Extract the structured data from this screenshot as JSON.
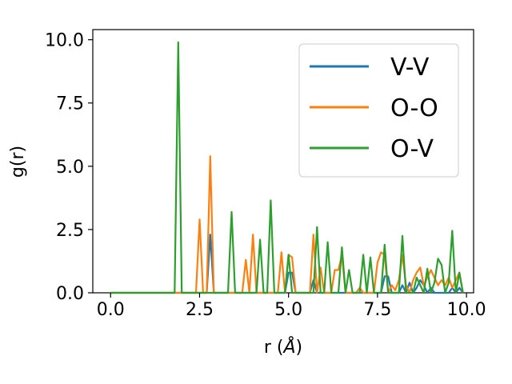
{
  "chart_data": {
    "type": "line",
    "title": "",
    "xlabel_text": "r (",
    "xlabel_unit": "Å",
    "xlabel_close": ")",
    "ylabel": "g(r)",
    "xlim": [
      -0.5,
      10.2
    ],
    "ylim": [
      0,
      10.4
    ],
    "xticks": [
      0.0,
      2.5,
      5.0,
      7.5,
      10.0
    ],
    "xtick_labels": [
      "0.0",
      "2.5",
      "5.0",
      "7.5",
      "10.0"
    ],
    "yticks": [
      0.0,
      2.5,
      5.0,
      7.5,
      10.0
    ],
    "ytick_labels": [
      "0.0",
      "2.5",
      "5.0",
      "7.5",
      "10.0"
    ],
    "grid": false,
    "legend_position": "top-right",
    "series": [
      {
        "name": "V-V",
        "color": "#1f77b4",
        "points": [
          [
            0,
            0
          ],
          [
            2.7,
            0
          ],
          [
            2.8,
            2.3
          ],
          [
            2.9,
            0
          ],
          [
            4.9,
            0
          ],
          [
            5.0,
            0.8
          ],
          [
            5.1,
            0.8
          ],
          [
            5.2,
            0
          ],
          [
            5.6,
            0
          ],
          [
            5.7,
            0.5
          ],
          [
            5.8,
            0
          ],
          [
            7.6,
            0
          ],
          [
            7.7,
            0.65
          ],
          [
            7.8,
            0.65
          ],
          [
            7.9,
            0
          ],
          [
            8.1,
            0
          ],
          [
            8.2,
            0.3
          ],
          [
            8.3,
            0
          ],
          [
            8.4,
            0.4
          ],
          [
            8.5,
            0
          ],
          [
            8.6,
            0.2
          ],
          [
            8.7,
            0.5
          ],
          [
            8.8,
            0.3
          ],
          [
            8.9,
            0
          ],
          [
            9.0,
            0.2
          ],
          [
            9.1,
            0
          ],
          [
            9.5,
            0
          ],
          [
            9.6,
            0.2
          ],
          [
            9.7,
            0
          ],
          [
            9.8,
            0.2
          ],
          [
            9.9,
            0
          ]
        ]
      },
      {
        "name": "O-O",
        "color": "#ff7f0e",
        "points": [
          [
            0,
            0
          ],
          [
            2.4,
            0
          ],
          [
            2.5,
            2.9
          ],
          [
            2.6,
            0
          ],
          [
            2.7,
            0
          ],
          [
            2.8,
            5.4
          ],
          [
            2.9,
            0
          ],
          [
            3.7,
            0
          ],
          [
            3.8,
            1.3
          ],
          [
            3.9,
            0
          ],
          [
            4.0,
            2.3
          ],
          [
            4.1,
            0
          ],
          [
            4.7,
            0
          ],
          [
            4.8,
            1.6
          ],
          [
            4.9,
            0
          ],
          [
            5.0,
            1.5
          ],
          [
            5.1,
            1.4
          ],
          [
            5.2,
            0
          ],
          [
            5.6,
            0
          ],
          [
            5.7,
            2.3
          ],
          [
            5.8,
            0
          ],
          [
            5.9,
            1.0
          ],
          [
            6.0,
            0
          ],
          [
            6.2,
            0
          ],
          [
            6.3,
            0.9
          ],
          [
            6.4,
            0.9
          ],
          [
            6.5,
            1.5
          ],
          [
            6.6,
            0
          ],
          [
            6.9,
            0
          ],
          [
            7.0,
            0.2
          ],
          [
            7.1,
            0
          ],
          [
            7.4,
            0
          ],
          [
            7.5,
            1.2
          ],
          [
            7.6,
            1.6
          ],
          [
            7.7,
            1.5
          ],
          [
            7.8,
            0
          ],
          [
            7.9,
            0.3
          ],
          [
            8.0,
            0.1
          ],
          [
            8.1,
            0.5
          ],
          [
            8.2,
            1.5
          ],
          [
            8.3,
            0.3
          ],
          [
            8.4,
            0
          ],
          [
            8.5,
            0.5
          ],
          [
            8.6,
            0.8
          ],
          [
            8.7,
            1.0
          ],
          [
            8.8,
            0.3
          ],
          [
            8.9,
            0.6
          ],
          [
            9.0,
            0.9
          ],
          [
            9.1,
            0.6
          ],
          [
            9.2,
            0.3
          ],
          [
            9.3,
            0.5
          ],
          [
            9.4,
            0.3
          ],
          [
            9.5,
            0.6
          ],
          [
            9.6,
            0.2
          ],
          [
            9.7,
            0.5
          ],
          [
            9.8,
            0.8
          ],
          [
            9.9,
            0
          ]
        ]
      },
      {
        "name": "O-V",
        "color": "#2ca02c",
        "points": [
          [
            0,
            0
          ],
          [
            1.8,
            0
          ],
          [
            1.9,
            9.9
          ],
          [
            2.0,
            0
          ],
          [
            3.3,
            0
          ],
          [
            3.4,
            3.2
          ],
          [
            3.5,
            0
          ],
          [
            4.1,
            0
          ],
          [
            4.2,
            2.1
          ],
          [
            4.3,
            0
          ],
          [
            4.4,
            0
          ],
          [
            4.5,
            3.65
          ],
          [
            4.6,
            0
          ],
          [
            4.9,
            0
          ],
          [
            5.0,
            1.5
          ],
          [
            5.1,
            0
          ],
          [
            5.7,
            0
          ],
          [
            5.8,
            2.6
          ],
          [
            5.9,
            0
          ],
          [
            6.0,
            0
          ],
          [
            6.1,
            2.0
          ],
          [
            6.2,
            0
          ],
          [
            6.4,
            0
          ],
          [
            6.5,
            1.8
          ],
          [
            6.6,
            0
          ],
          [
            6.7,
            0.9
          ],
          [
            6.8,
            0
          ],
          [
            7.0,
            0
          ],
          [
            7.1,
            1.5
          ],
          [
            7.2,
            0
          ],
          [
            7.3,
            1.4
          ],
          [
            7.4,
            0
          ],
          [
            7.6,
            0
          ],
          [
            7.7,
            1.9
          ],
          [
            7.8,
            0
          ],
          [
            8.1,
            0
          ],
          [
            8.2,
            2.25
          ],
          [
            8.3,
            0
          ],
          [
            8.5,
            0
          ],
          [
            8.6,
            0.6
          ],
          [
            8.7,
            0.3
          ],
          [
            8.8,
            0
          ],
          [
            8.9,
            0.95
          ],
          [
            9.0,
            0
          ],
          [
            9.1,
            0.4
          ],
          [
            9.2,
            1.35
          ],
          [
            9.3,
            1.1
          ],
          [
            9.4,
            0
          ],
          [
            9.5,
            0.4
          ],
          [
            9.6,
            2.45
          ],
          [
            9.7,
            0
          ],
          [
            9.8,
            0.8
          ],
          [
            9.9,
            0
          ]
        ]
      }
    ]
  }
}
